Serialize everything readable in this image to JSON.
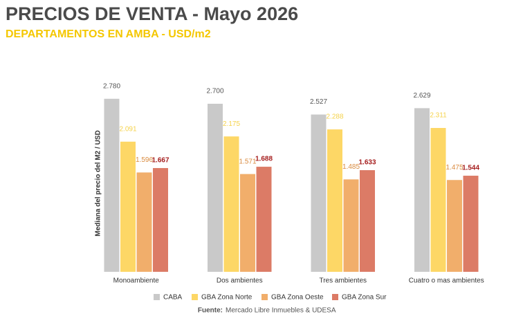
{
  "chart_data": {
    "type": "bar",
    "title": "PRECIOS DE VENTA - Mayo 2026",
    "subtitle": "DEPARTAMENTOS EN AMBA - USD/m2",
    "y_label": "Mediana del precio del M2 / USD",
    "source_label": "Fuente:",
    "source": "Mercado Libre Inmuebles & UDESA",
    "categories": [
      "Monoambiente",
      "Dos ambientes",
      "Tres ambientes",
      "Cuatro o mas ambientes"
    ],
    "ylim": [
      0,
      3000
    ],
    "legend": "bottom",
    "series": [
      {
        "name": "CABA",
        "color": "#c9c9c9",
        "label_color": "#555555",
        "values": [
          2780,
          2700,
          2527,
          2629
        ],
        "value_labels": [
          "2.780",
          "2.700",
          "2.527",
          "2.629"
        ]
      },
      {
        "name": "GBA Zona Norte",
        "color": "#fdd766",
        "label_color": "#f5d24a",
        "values": [
          2091,
          2175,
          2288,
          2311
        ],
        "value_labels": [
          "2.091",
          "2.175",
          "2.288",
          "2.311"
        ]
      },
      {
        "name": "GBA Zona Oeste",
        "color": "#f1ae6b",
        "label_color": "#d98a3e",
        "values": [
          1596,
          1571,
          1485,
          1475
        ],
        "value_labels": [
          "1.596",
          "1.571",
          "1.485",
          "1.475"
        ]
      },
      {
        "name": "GBA Zona Sur",
        "color": "#dc7b66",
        "label_color": "#a51d1d",
        "values": [
          1667,
          1688,
          1633,
          1544
        ],
        "value_labels": [
          "1.667",
          "1.688",
          "1.633",
          "1.544"
        ]
      }
    ]
  }
}
